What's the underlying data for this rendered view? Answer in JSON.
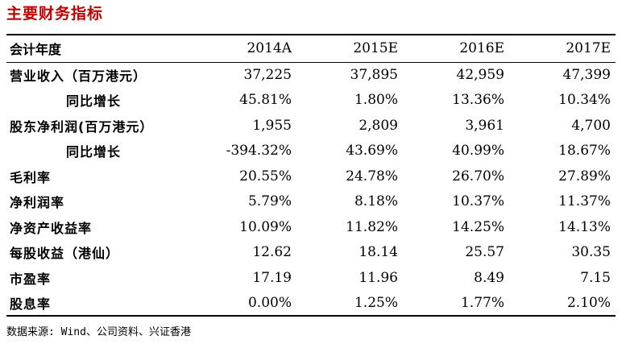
{
  "title": "主要财务指标",
  "table": {
    "header": {
      "label": "会计年度",
      "years": [
        "2014A",
        "2015E",
        "2016E",
        "2017E"
      ]
    },
    "rows": [
      {
        "label": "营业收入（百万港元）",
        "indent": false,
        "values": [
          "37,225",
          "37,895",
          "42,959",
          "47,399"
        ]
      },
      {
        "label": "同比增长",
        "indent": true,
        "values": [
          "45.81%",
          "1.80%",
          "13.36%",
          "10.34%"
        ]
      },
      {
        "label": "股东净利润(百万港元）",
        "indent": false,
        "values": [
          "1,955",
          "2,809",
          "3,961",
          "4,700"
        ]
      },
      {
        "label": "同比增长",
        "indent": true,
        "values": [
          "-394.32%",
          "43.69%",
          "40.99%",
          "18.67%"
        ]
      },
      {
        "label": "毛利率",
        "indent": false,
        "values": [
          "20.55%",
          "24.78%",
          "26.70%",
          "27.89%"
        ]
      },
      {
        "label": "净利润率",
        "indent": false,
        "values": [
          "5.79%",
          "8.18%",
          "10.37%",
          "11.37%"
        ]
      },
      {
        "label": "净资产收益率",
        "indent": false,
        "values": [
          "10.09%",
          "11.82%",
          "14.25%",
          "14.13%"
        ]
      },
      {
        "label": "每股收益（港仙）",
        "indent": false,
        "values": [
          "12.62",
          "18.14",
          "25.57",
          "30.35"
        ]
      },
      {
        "label": "市盈率",
        "indent": false,
        "values": [
          "17.19",
          "11.96",
          "8.49",
          "7.15"
        ]
      },
      {
        "label": "股息率",
        "indent": false,
        "values": [
          "0.00%",
          "1.25%",
          "1.77%",
          "2.10%"
        ]
      }
    ]
  },
  "source": "数据来源: Wind、公司资料、兴证香港",
  "colors": {
    "title": "#c00000",
    "text": "#000000",
    "rule": "#000000",
    "background": "#ffffff"
  }
}
